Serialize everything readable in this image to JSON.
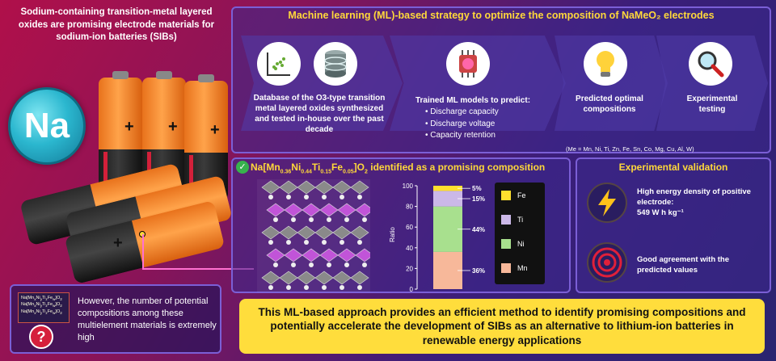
{
  "intro": "Sodium-containing transition-metal layered oxides are promising electrode materials for sodium-ion batteries (SIBs)",
  "na_label": "Na",
  "panel_title": "Machine learning (ML)-based strategy to optimize the composition of NaMeO₂ electrodes",
  "steps": [
    {
      "text": "Database of the O3-type transition metal layered oxides synthesized and tested in-house over the past decade",
      "icon": "database-icon"
    },
    {
      "text": "Trained ML models to predict:",
      "icon": "brain-chip-icon",
      "items": [
        "Discharge capacity",
        "Discharge voltage",
        "Capacity retention"
      ]
    },
    {
      "text": "Predicted optimal compositions",
      "icon": "lightbulb-icon"
    },
    {
      "text": "Experimental testing",
      "icon": "magnifier-icon"
    }
  ],
  "me_note": "(Me = Mn, Ni, Ti, Zn, Fe, Sn, Co, Mg, Cu, Al, W)",
  "composition_title_suffix": "identified as a promising composition",
  "chart_data": {
    "type": "bar",
    "stacked": true,
    "categories": [
      ""
    ],
    "ylabel": "Ratio",
    "ylim": [
      0,
      100
    ],
    "yticks": [
      0,
      20,
      40,
      60,
      80,
      100
    ],
    "series": [
      {
        "name": "Mn",
        "values": [
          36
        ],
        "label": "36%",
        "color": "#f7b89a"
      },
      {
        "name": "Ni",
        "values": [
          44
        ],
        "label": "44%",
        "color": "#a8e08e"
      },
      {
        "name": "Ti",
        "values": [
          15
        ],
        "label": "15%",
        "color": "#cbb8e8"
      },
      {
        "name": "Fe",
        "values": [
          5
        ],
        "label": "5%",
        "color": "#ffe02e"
      }
    ]
  },
  "exp_title": "Experimental validation",
  "exp_items": [
    {
      "icon": "lightning-icon",
      "line1": "High energy density of positive electrode:",
      "line2": "549 W h kg⁻¹"
    },
    {
      "icon": "target-icon",
      "line1": "Good agreement with the predicted values",
      "line2": ""
    }
  ],
  "bottom_text": "However, the number of potential compositions among these multielement materials is extremely high",
  "q_mark": "?",
  "conclusion": "This ML-based approach provides an efficient method to identify promising compositions and potentially accelerate the development of SIBs as an alternative to lithium-ion batteries in renewable energy applications",
  "colors": {
    "accent": "#ffd83a",
    "panel_border": "#7b5fd6",
    "conclusion_bg": "#ffdd3c"
  }
}
